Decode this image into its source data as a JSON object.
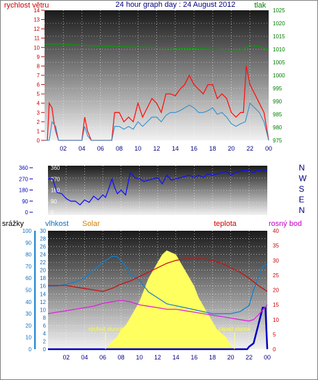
{
  "title": "24 hour graph day : 24 August 2012",
  "time_ticks": [
    "02",
    "04",
    "06",
    "08",
    "10",
    "12",
    "14",
    "16",
    "18",
    "20",
    "22",
    "00"
  ],
  "colors": {
    "wind": "#ff1010",
    "wind_avg": "#3090d0",
    "pressure": "#00a000",
    "direction": "#1010ff",
    "humidity": "#1080d0",
    "solar": "#ffff60",
    "temperature": "#cc1010",
    "dewpoint": "#e020e0",
    "rain": "#0000c0",
    "grid": "#ffffff"
  },
  "chart_data": [
    {
      "type": "line",
      "name": "wind-pressure",
      "left_axis_label": "rychlost větru",
      "right_axis_label": "tlak",
      "ylim_left": [
        0,
        14
      ],
      "ylim_right": [
        975,
        1025
      ],
      "ticks_left": [
        "0",
        "1",
        "2",
        "3",
        "4",
        "5",
        "6",
        "7",
        "8",
        "9",
        "10",
        "11",
        "12",
        "13",
        "14"
      ],
      "ticks_right": [
        "975",
        "980",
        "985",
        "990",
        "995",
        "1000",
        "1005",
        "1010",
        "1015",
        "1020",
        "1025"
      ],
      "series": [
        {
          "key": "gust",
          "x": [
            0,
            0.3,
            0.5,
            0.8,
            1.0,
            1.2,
            1.5,
            1.8,
            2.1,
            2.5,
            3,
            3.5,
            4,
            4.3,
            4.6,
            5,
            5.5,
            6,
            6.3,
            6.6,
            6.9,
            7.2,
            7.5,
            8,
            8.5,
            9,
            9.5,
            10,
            10.5,
            11,
            11.5,
            12,
            12.5,
            13,
            13.5,
            14,
            14.5,
            15,
            15.5,
            16,
            16.5,
            17,
            17.5,
            18,
            18.5,
            19,
            19.5,
            20,
            20.5,
            21,
            21.3,
            21.6,
            22,
            22.5,
            23,
            23.5,
            24
          ],
          "y": [
            0,
            0,
            4,
            3.5,
            2,
            1,
            0,
            0,
            0,
            0,
            0,
            0,
            0,
            2.5,
            1,
            0,
            0,
            0,
            0,
            0,
            0,
            0,
            3,
            3,
            2,
            2.5,
            2,
            4,
            2.5,
            3.5,
            4.5,
            4,
            3,
            5,
            5,
            4.8,
            5.5,
            6,
            7,
            6,
            5.5,
            5,
            6,
            6,
            4.5,
            5,
            4.5,
            3,
            2.5,
            3,
            3,
            8,
            6,
            5,
            4,
            3,
            0
          ]
        },
        {
          "key": "avg",
          "x": [
            0,
            0.5,
            0.8,
            1.2,
            1.5,
            2.5,
            3.5,
            4,
            4.3,
            4.6,
            5,
            6,
            7,
            7.2,
            7.5,
            8,
            8.5,
            9,
            9.5,
            10,
            10.5,
            11,
            11.5,
            12,
            12.5,
            13,
            13.5,
            14,
            14.5,
            15,
            15.5,
            16,
            16.5,
            17,
            17.5,
            18,
            18.5,
            19,
            19.5,
            20,
            20.5,
            21,
            21.5,
            22,
            22.5,
            23,
            23.5,
            24
          ],
          "y": [
            0,
            0,
            2,
            1.5,
            0,
            0,
            0,
            0,
            1.5,
            0.5,
            0,
            0,
            0,
            0,
            1.5,
            1.5,
            1.2,
            1.5,
            1.2,
            2,
            1.5,
            2,
            2.5,
            2.5,
            2,
            2.7,
            3,
            3,
            3.2,
            3.5,
            3.8,
            3.5,
            3,
            3,
            3.2,
            3.5,
            2.8,
            3,
            2.5,
            1.8,
            1.5,
            1.8,
            2,
            4,
            3.5,
            3,
            2,
            0
          ]
        },
        {
          "key": "pressure",
          "x": [
            0,
            2,
            4,
            6,
            8,
            10,
            12,
            14,
            16,
            18,
            20,
            21,
            22,
            23,
            24
          ],
          "y": [
            1012,
            1012,
            1011.5,
            1011.2,
            1011,
            1010.8,
            1010.7,
            1010.5,
            1010.3,
            1010,
            1009.8,
            1009.8,
            1011.5,
            1011,
            1010
          ]
        }
      ]
    },
    {
      "type": "line",
      "name": "wind-direction",
      "ylim": [
        0,
        360
      ],
      "ticks_left": [
        "0",
        "90",
        "180",
        "270",
        "360"
      ],
      "ticks_inner": [
        "0",
        "90",
        "180",
        "270",
        "360"
      ],
      "ticks_right": [
        "N",
        "E",
        "S",
        "W",
        "N"
      ],
      "series": [
        {
          "key": "direction",
          "x": [
            0,
            0.5,
            1,
            1.5,
            2,
            2.5,
            3,
            3.5,
            4,
            4.5,
            5,
            5.5,
            6,
            6.3,
            6.6,
            7,
            7.3,
            7.6,
            8,
            8.5,
            9,
            9.5,
            10,
            10.5,
            11,
            11.5,
            12,
            12.5,
            13,
            13.5,
            14,
            14.5,
            15,
            15.5,
            16,
            16.5,
            17,
            17.5,
            18,
            18.5,
            19,
            19.5,
            20,
            20.5,
            21,
            21.5,
            22,
            22.5,
            23,
            23.5,
            24
          ],
          "y": [
            270,
            270,
            160,
            150,
            110,
            90,
            90,
            60,
            100,
            80,
            130,
            100,
            140,
            120,
            180,
            270,
            200,
            150,
            180,
            140,
            320,
            280,
            270,
            250,
            260,
            270,
            280,
            230,
            300,
            260,
            270,
            280,
            290,
            300,
            280,
            300,
            280,
            310,
            300,
            310,
            320,
            330,
            300,
            320,
            330,
            340,
            340,
            320,
            340,
            330,
            340
          ]
        }
      ]
    },
    {
      "type": "line",
      "name": "humidity-solar-temperature",
      "left_axis_label": "srážky",
      "humidity_label": "vlhkost",
      "solar_label": "Solar",
      "temperature_label": "teplota",
      "dewpoint_label": "rosný bod",
      "sunrise_label": "východ slunce",
      "sunset_label": "západ slunce",
      "ylim_rain": [
        0,
        100
      ],
      "ylim_humidity": [
        0,
        30
      ],
      "ylim_temperature": [
        0,
        40
      ],
      "ticks_rain": [
        "0",
        "10",
        "20",
        "30",
        "40",
        "50",
        "60",
        "70",
        "80",
        "90",
        "100"
      ],
      "ticks_humidity": [
        "0",
        "2",
        "4",
        "6",
        "8",
        "10",
        "12",
        "14",
        "16",
        "18",
        "20",
        "22",
        "24",
        "26",
        "28",
        "30"
      ],
      "ticks_temperature": [
        "0",
        "5",
        "10",
        "15",
        "20",
        "25",
        "30",
        "35",
        "40"
      ],
      "sunrise_x": 6.3,
      "sunset_x": 20.4,
      "series": [
        {
          "key": "humidity",
          "x": [
            0,
            1,
            2,
            3,
            4,
            5,
            6,
            7,
            7.5,
            8,
            8.5,
            9,
            10,
            11,
            12,
            13,
            14,
            15,
            16,
            17,
            18,
            19,
            20,
            21,
            22,
            22.5,
            23,
            23.5,
            24
          ],
          "y": [
            16,
            16,
            16.5,
            17,
            18,
            20,
            22,
            23.5,
            23.5,
            22.5,
            21,
            19,
            17.5,
            14.5,
            13,
            11.5,
            11,
            10.5,
            10,
            9.5,
            9,
            9,
            9,
            9.5,
            11,
            15,
            18,
            21,
            21.5
          ]
        },
        {
          "key": "temperature",
          "x": [
            0,
            1,
            2,
            3,
            4,
            5,
            6,
            7,
            8,
            9,
            10,
            11,
            12,
            13,
            14,
            15,
            16,
            17,
            18,
            19,
            20,
            21,
            22,
            23,
            24
          ],
          "y": [
            21.5,
            21.5,
            21.5,
            21,
            20.5,
            20,
            19.5,
            20.5,
            22,
            23,
            24.5,
            26,
            27.5,
            29,
            30,
            30.5,
            30.5,
            30.5,
            30,
            29,
            27.5,
            26,
            24,
            21.5,
            19.5
          ]
        },
        {
          "key": "dewpoint",
          "x": [
            0,
            1,
            2,
            3,
            4,
            5,
            6,
            7,
            8,
            9,
            10,
            11,
            12,
            13,
            14,
            15,
            16,
            17,
            18,
            19,
            20,
            21,
            22,
            22.5,
            23,
            24
          ],
          "y": [
            12,
            12.5,
            13,
            13.5,
            14,
            14.5,
            15.5,
            16,
            16.5,
            16,
            15,
            14.5,
            14,
            13.5,
            13.5,
            13,
            12.5,
            12,
            11.5,
            11,
            10.5,
            10,
            9.5,
            10,
            11.5,
            15
          ]
        },
        {
          "key": "solar",
          "x": [
            6.3,
            7,
            7.5,
            8,
            8.5,
            9,
            9.5,
            10,
            10.5,
            11,
            11.5,
            12,
            12.5,
            13,
            13.5,
            14,
            14.5,
            15,
            15.5,
            16,
            16.5,
            17,
            17.5,
            18,
            18.5,
            19,
            19.5,
            20,
            20.4
          ],
          "y": [
            0,
            2,
            3,
            5,
            6,
            8,
            10,
            12,
            15,
            18,
            20,
            22,
            24,
            25,
            24.5,
            24,
            22,
            20,
            18,
            16,
            13,
            11,
            9,
            7,
            5,
            4,
            3,
            1,
            0
          ]
        },
        {
          "key": "rain",
          "x": [
            0,
            21.8,
            22,
            22.5,
            23,
            23.5,
            23.8,
            24
          ],
          "y": [
            0,
            0,
            2,
            5,
            20,
            35,
            35,
            0
          ]
        }
      ]
    }
  ]
}
